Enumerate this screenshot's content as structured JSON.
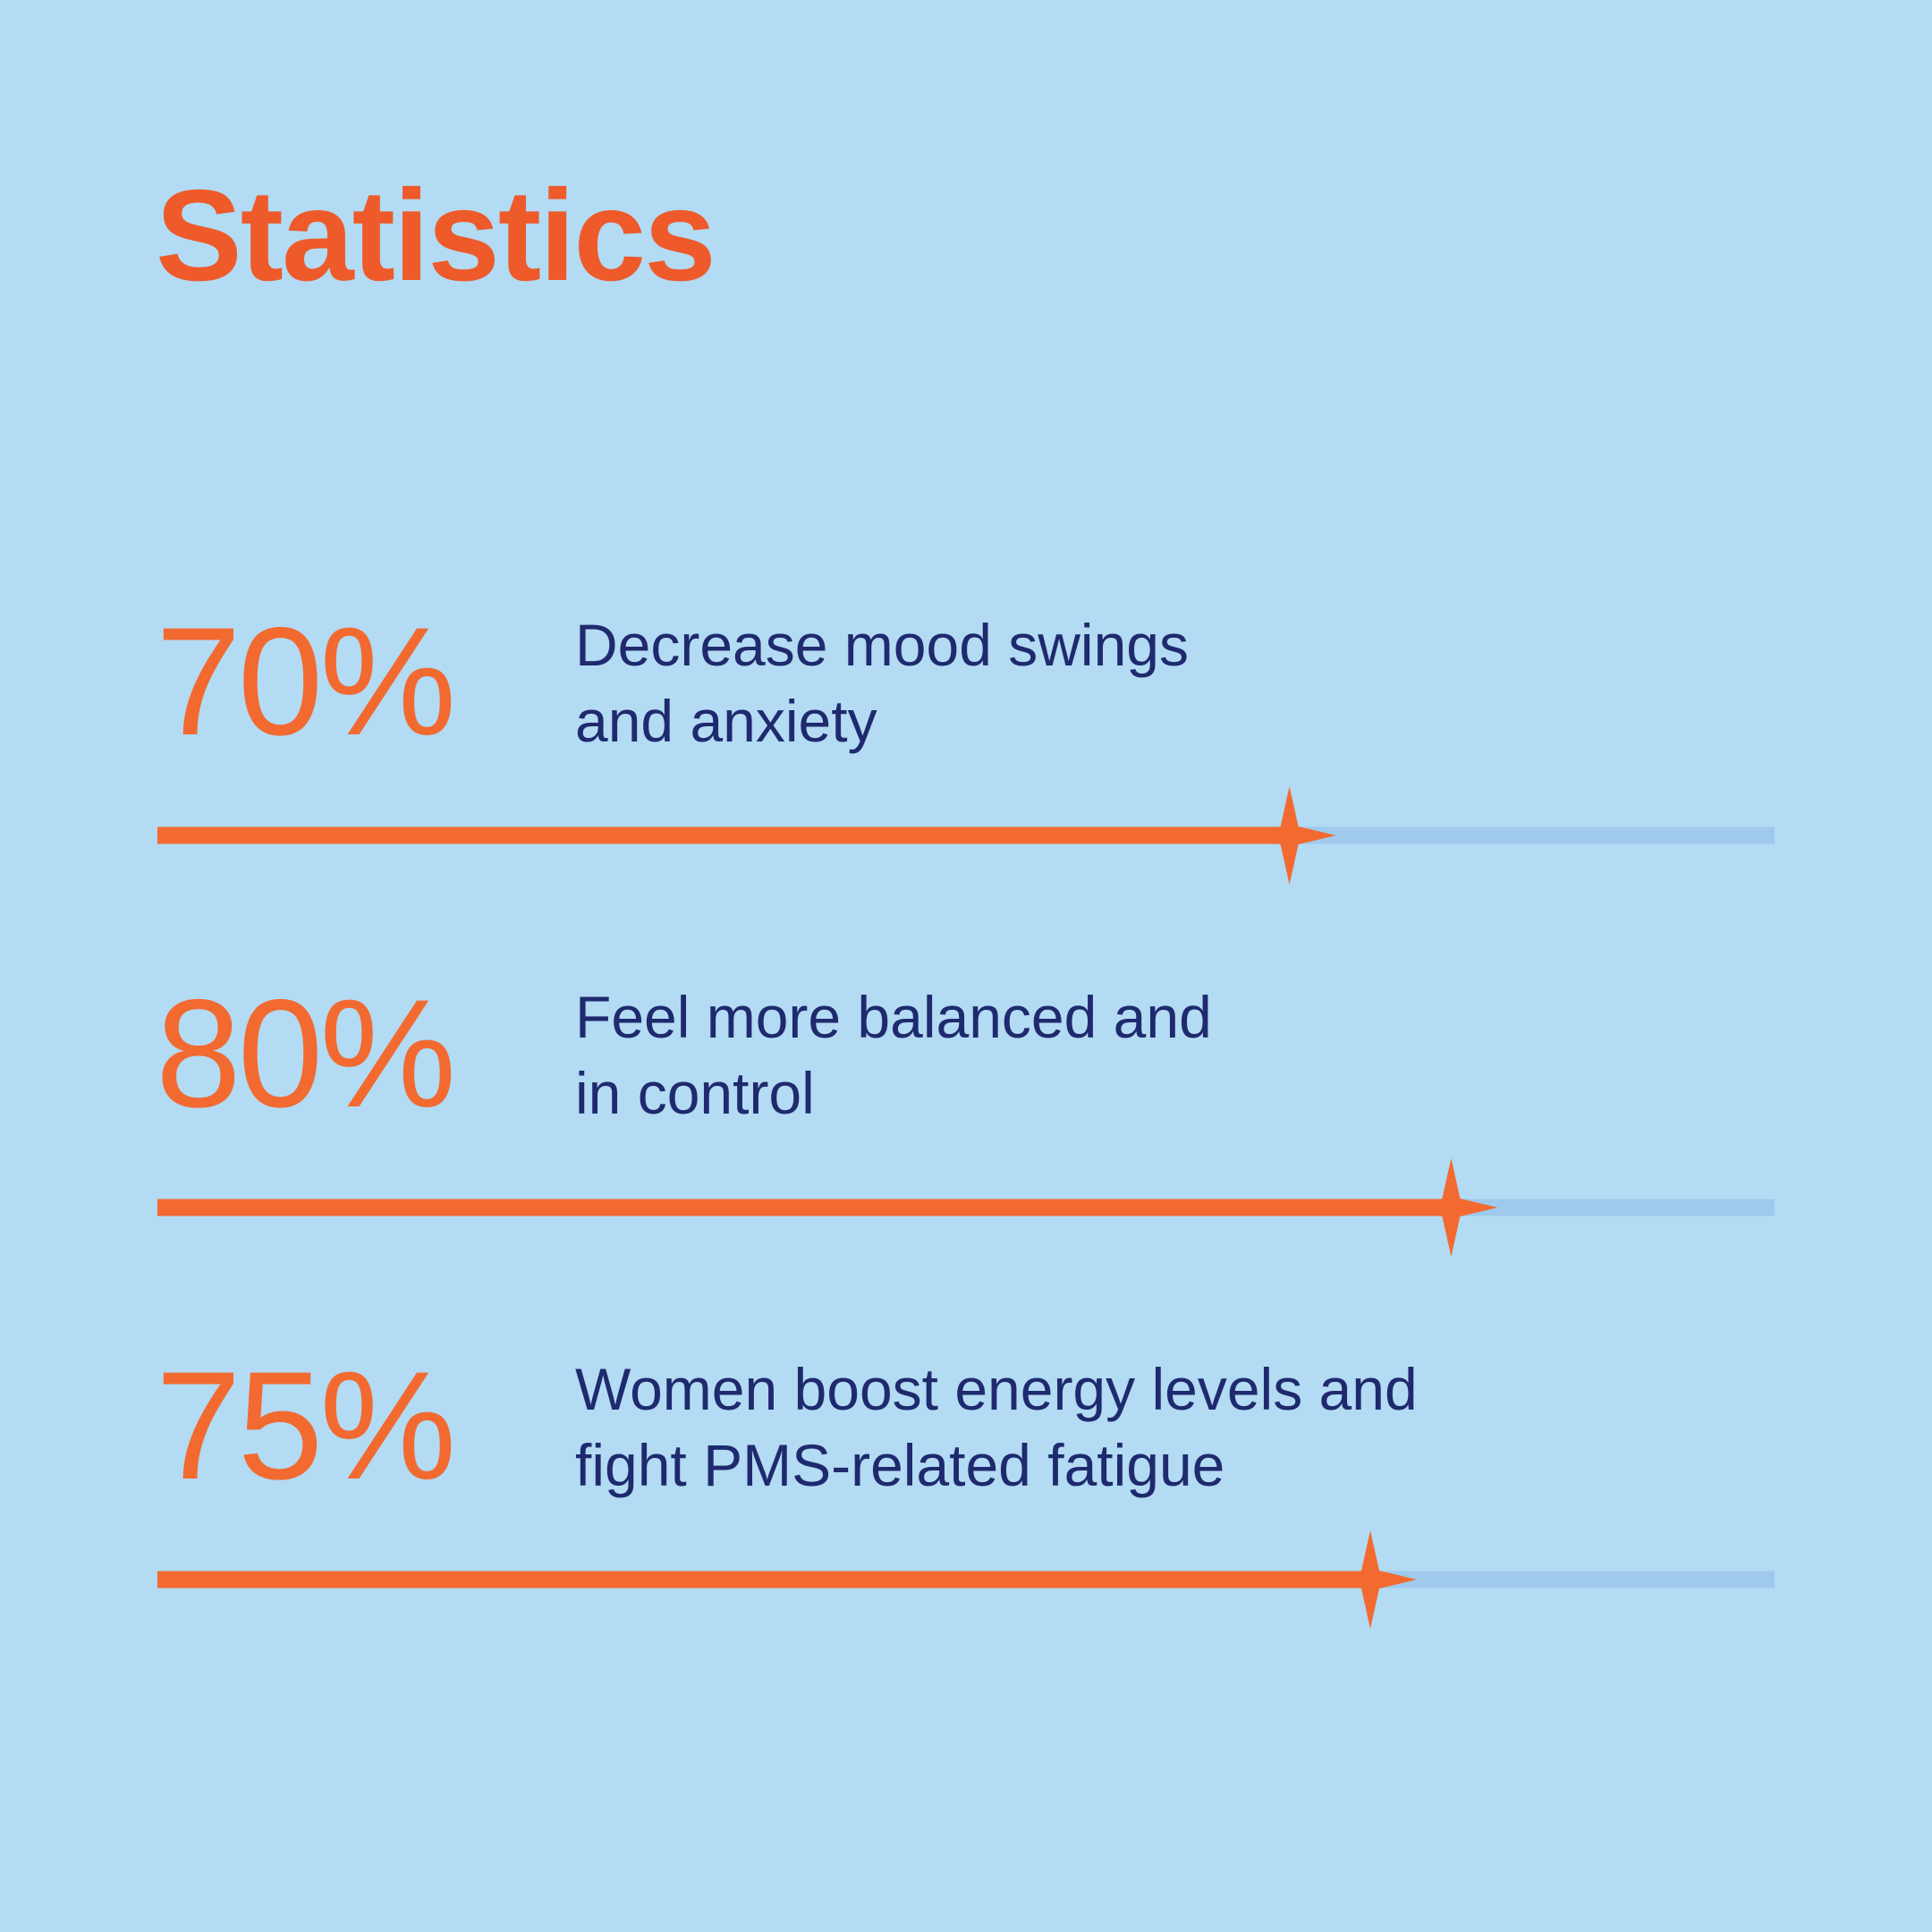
{
  "chart_data": {
    "type": "bar",
    "orientation": "horizontal",
    "title": "Statistics",
    "categories": [
      "Decrease mood swings\nand anxiety",
      "Feel more balanced and\nin control",
      "Women boost energy levels and\nfight PMS-related fatigue"
    ],
    "values": [
      70,
      80,
      75
    ],
    "value_labels": [
      "70%",
      "80%",
      "75%"
    ],
    "xlim": [
      0,
      100
    ],
    "color": "#f26a30",
    "track_color": "#9fcaee"
  }
}
